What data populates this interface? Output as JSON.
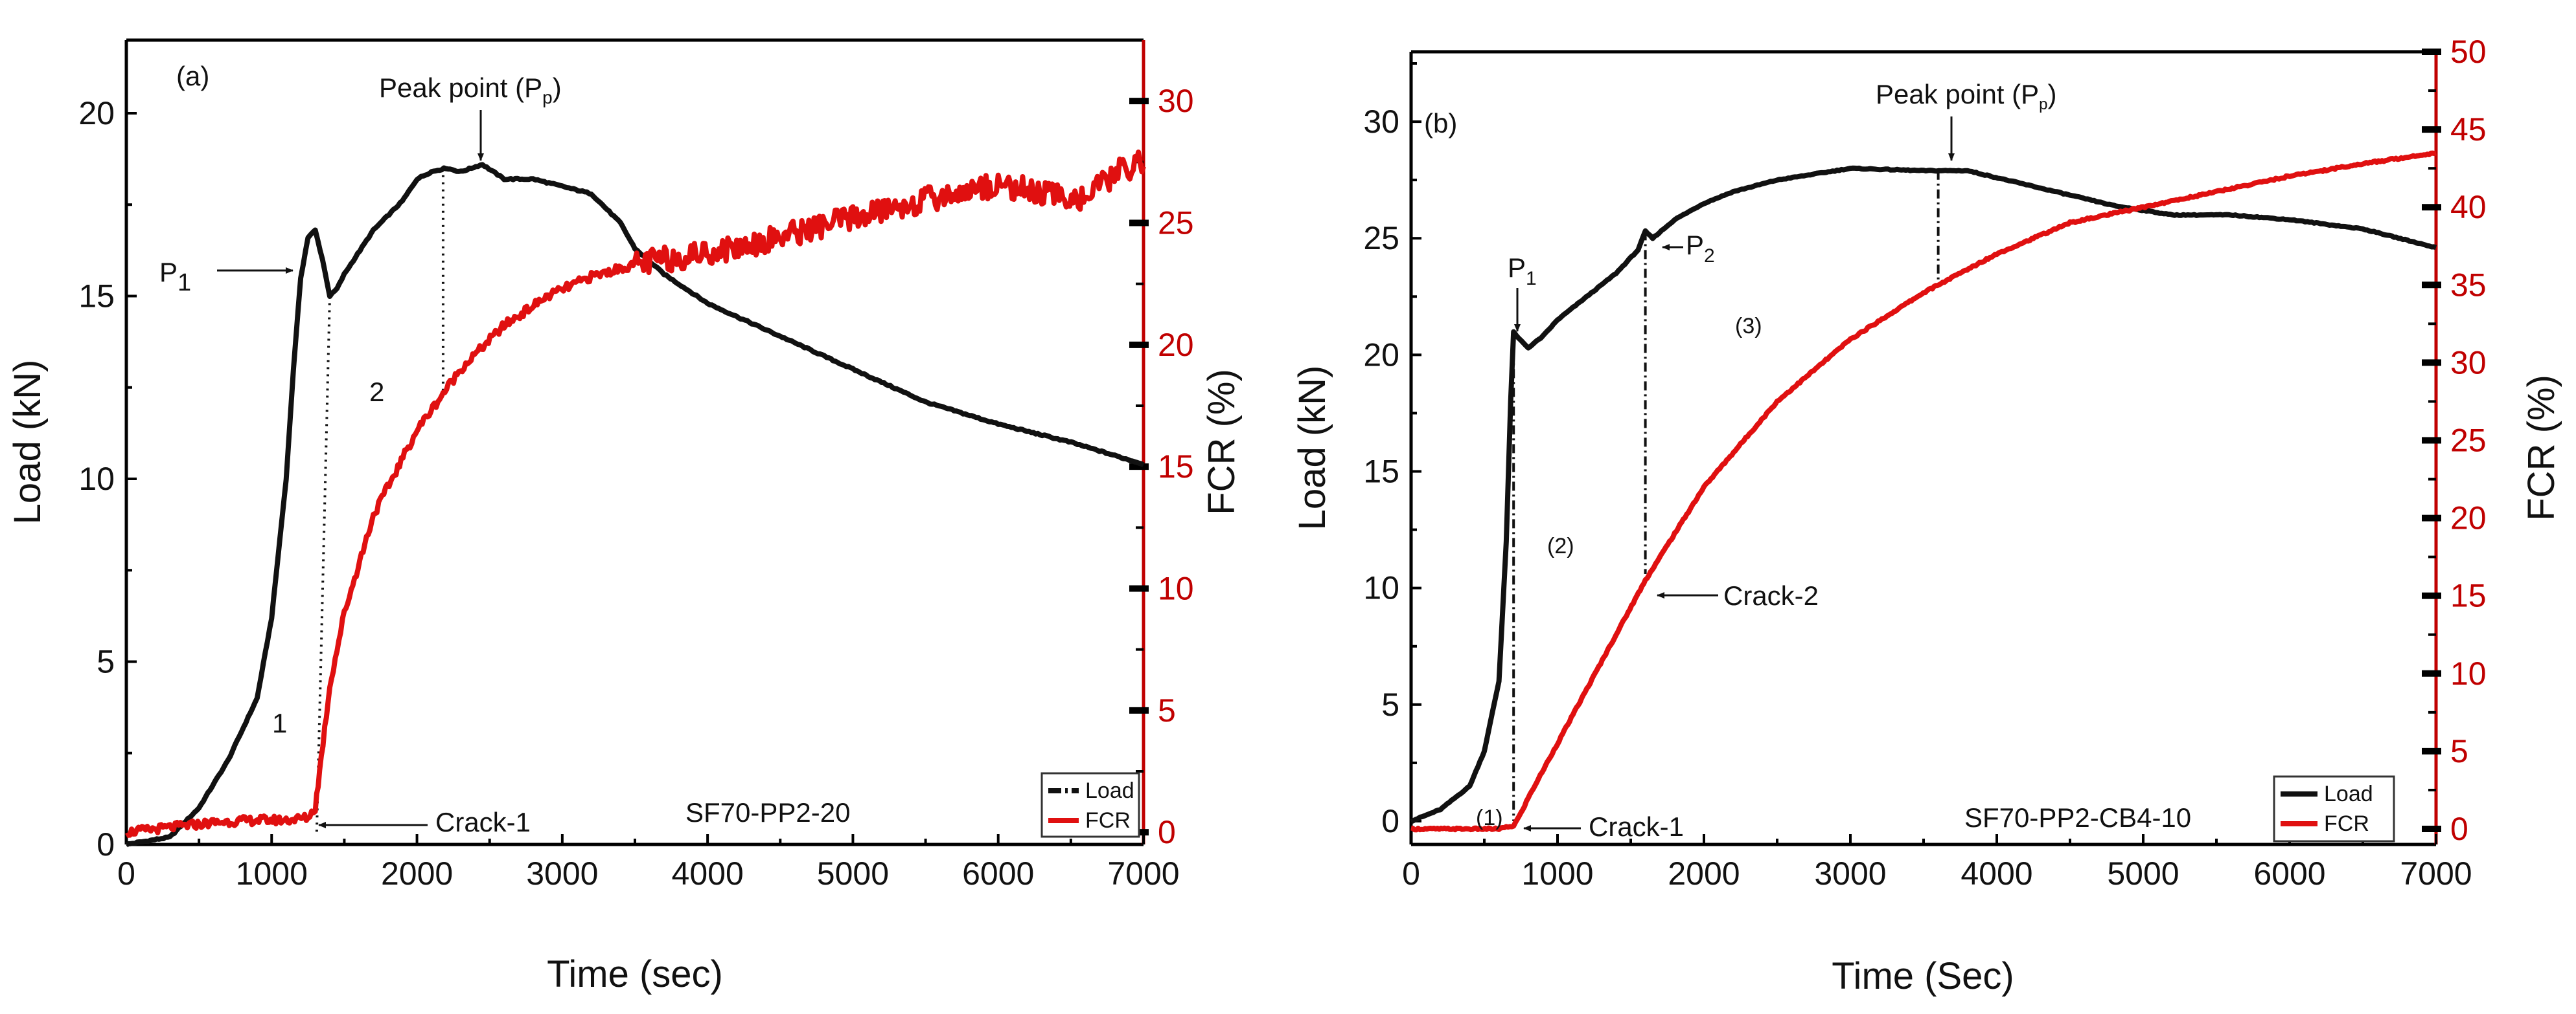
{
  "chart_data": [
    {
      "type": "line",
      "panel_label": "(a)",
      "specimen": "SF70-PP2-20",
      "xlabel": "Time (sec)",
      "ylabel": "Load (kN)",
      "y2label": "FCR (%)",
      "xlim": [
        0,
        7000
      ],
      "ylim": [
        0,
        22
      ],
      "y2lim": [
        -0.5,
        32.5
      ],
      "x_ticks": [
        "0",
        "1000",
        "2000",
        "3000",
        "4000",
        "5000",
        "6000",
        "7000"
      ],
      "y_ticks": [
        "0",
        "5",
        "10",
        "15",
        "20"
      ],
      "y2_ticks": [
        "0",
        "5",
        "10",
        "15",
        "20",
        "25",
        "30"
      ],
      "series": [
        {
          "name": "Load",
          "axis": "left",
          "color": "#111111",
          "x": [
            0,
            300,
            500,
            700,
            900,
            1000,
            1100,
            1150,
            1200,
            1250,
            1300,
            1350,
            1400,
            1450,
            1500,
            1700,
            1900,
            2000,
            2100,
            2200,
            2300,
            2450,
            2600,
            2800,
            3000,
            3200,
            3400,
            3500,
            3700,
            4000,
            4500,
            5000,
            5500,
            6000,
            6500,
            7000
          ],
          "y": [
            0,
            0.2,
            1.0,
            2.3,
            4.0,
            6.2,
            10.0,
            13.0,
            15.5,
            16.6,
            16.8,
            16.0,
            15.0,
            15.2,
            15.6,
            16.8,
            17.6,
            18.2,
            18.4,
            18.5,
            18.4,
            18.6,
            18.2,
            18.2,
            18.0,
            17.8,
            17.0,
            16.3,
            15.6,
            14.8,
            13.9,
            13.0,
            12.1,
            11.5,
            11.0,
            10.4
          ]
        },
        {
          "name": "FCR",
          "axis": "right",
          "color": "#e01010",
          "x": [
            0,
            300,
            600,
            900,
            1100,
            1250,
            1300,
            1330,
            1400,
            1500,
            1700,
            2000,
            2300,
            2600,
            2900,
            3200,
            3500,
            3800,
            4200,
            4600,
            5000,
            5400,
            5700,
            6000,
            6300,
            6600,
            6800,
            7000
          ],
          "y": [
            0,
            0.2,
            0.4,
            0.5,
            0.5,
            0.6,
            1.0,
            2.5,
            6.0,
            9.0,
            13.0,
            16.5,
            19.0,
            20.8,
            22.0,
            22.8,
            23.3,
            23.6,
            24.0,
            24.6,
            25.2,
            25.8,
            26.2,
            26.6,
            26.2,
            26.0,
            27.0,
            27.6
          ]
        }
      ],
      "annotations": [
        "P1",
        "Peak point (Pp)",
        "Crack-1",
        "1",
        "2"
      ],
      "legend": [
        "Load",
        "FCR"
      ],
      "legend_position": "bottom-right"
    },
    {
      "type": "line",
      "panel_label": "(b)",
      "specimen": "SF70-PP2-CB4-10",
      "xlabel": "Time (Sec)",
      "ylabel": "Load (kN)",
      "y2label": "FCR (%)",
      "xlim": [
        0,
        7000
      ],
      "ylim": [
        -1,
        33
      ],
      "y2lim": [
        -1,
        50
      ],
      "x_ticks": [
        "0",
        "1000",
        "2000",
        "3000",
        "4000",
        "5000",
        "6000",
        "7000"
      ],
      "y_ticks": [
        "0",
        "5",
        "10",
        "15",
        "20",
        "25",
        "30"
      ],
      "y2_ticks": [
        "0",
        "5",
        "10",
        "15",
        "20",
        "25",
        "30",
        "35",
        "40",
        "45",
        "50"
      ],
      "series": [
        {
          "name": "Load",
          "axis": "left",
          "color": "#111111",
          "x": [
            0,
            200,
            400,
            500,
            600,
            650,
            680,
            700,
            720,
            800,
            900,
            1000,
            1200,
            1400,
            1550,
            1600,
            1650,
            1800,
            2000,
            2200,
            2500,
            3000,
            3500,
            3800,
            4200,
            4800,
            5200,
            5600,
            6000,
            6500,
            7000
          ],
          "y": [
            0,
            0.5,
            1.5,
            3.0,
            6.0,
            12.0,
            18.0,
            21.0,
            20.8,
            20.3,
            20.8,
            21.5,
            22.5,
            23.5,
            24.5,
            25.3,
            25.0,
            25.8,
            26.5,
            27.0,
            27.5,
            28.0,
            27.9,
            27.9,
            27.3,
            26.4,
            26.0,
            26.0,
            25.8,
            25.4,
            24.6
          ]
        },
        {
          "name": "FCR",
          "axis": "right",
          "color": "#e01010",
          "x": [
            0,
            300,
            600,
            700,
            750,
            800,
            1000,
            1200,
            1400,
            1600,
            1800,
            2000,
            2500,
            3000,
            3500,
            4000,
            4500,
            5000,
            5500,
            6000,
            6500,
            7000
          ],
          "y": [
            0,
            0,
            0,
            0.2,
            1.0,
            2.0,
            5.5,
            9.0,
            12.5,
            16.0,
            19.0,
            22.0,
            27.5,
            31.5,
            34.5,
            37.0,
            39.0,
            40.0,
            41.0,
            42.0,
            42.8,
            43.5
          ]
        }
      ],
      "annotations": [
        "P1",
        "P2",
        "Peak point (Pp)",
        "Crack-1",
        "Crack-2",
        "(1)",
        "(2)",
        "(3)"
      ],
      "legend": [
        "Load",
        "FCR"
      ],
      "legend_position": "bottom-right"
    }
  ],
  "annotations": {
    "a": {
      "p1_base": "P",
      "p1_sub": "1",
      "peak_text": "Peak point (P",
      "peak_sub": "p",
      "peak_close": ")",
      "crack1": "Crack-1",
      "region1": "1",
      "region2": "2"
    },
    "b": {
      "p1_base": "P",
      "p1_sub": "1",
      "p2_base": "P",
      "p2_sub": "2",
      "peak_text": "Peak point (P",
      "peak_sub": "p",
      "peak_close": ")",
      "crack1": "Crack-1",
      "crack2": "Crack-2",
      "region1": "(1)",
      "region2": "(2)",
      "region3": "(3)"
    }
  }
}
